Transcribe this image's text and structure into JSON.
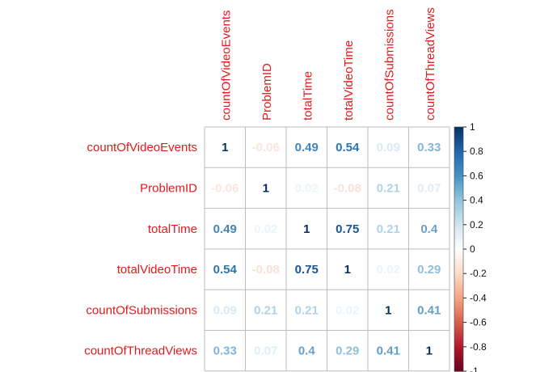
{
  "chart_data": {
    "type": "heatmap",
    "variables": [
      "countOfVideoEvents",
      "ProblemID",
      "totalTime",
      "totalVideoTime",
      "countOfSubmissions",
      "countOfThreadViews"
    ],
    "matrix": [
      [
        1,
        -0.06,
        0.49,
        0.54,
        0.09,
        0.33
      ],
      [
        -0.06,
        1,
        0.02,
        -0.08,
        0.21,
        0.07
      ],
      [
        0.49,
        0.02,
        1,
        0.75,
        0.21,
        0.4
      ],
      [
        0.54,
        -0.08,
        0.75,
        1,
        0.02,
        0.29
      ],
      [
        0.09,
        0.21,
        0.21,
        0.02,
        1,
        0.41
      ],
      [
        0.33,
        0.07,
        0.4,
        0.29,
        0.41,
        1
      ]
    ],
    "labels": [
      [
        "1",
        "-0.06",
        "0.49",
        "0.54",
        "0.09",
        "0.33"
      ],
      [
        "-0.06",
        "1",
        "0.02",
        "-0.08",
        "0.21",
        "0.07"
      ],
      [
        "0.49",
        "0.02",
        "1",
        "0.75",
        "0.21",
        "0.4"
      ],
      [
        "0.54",
        "-0.08",
        "0.75",
        "1",
        "0.02",
        "0.29"
      ],
      [
        "0.09",
        "0.21",
        "0.21",
        "0.02",
        "1",
        "0.41"
      ],
      [
        "0.33",
        "0.07",
        "0.4",
        "0.29",
        "0.41",
        "1"
      ]
    ],
    "colorbar": {
      "range": [
        -1,
        1
      ],
      "ticks": [
        "1",
        "0.8",
        "0.6",
        "0.4",
        "0.2",
        "0",
        "-0.2",
        "-0.4",
        "-0.6",
        "-0.8",
        "-1"
      ]
    },
    "title": "",
    "xlabel": "",
    "ylabel": "",
    "colors": {
      "label_text": "#e31a1c",
      "grid": "#bebebe",
      "negative_end": "#67001f",
      "positive_end": "#053061"
    }
  }
}
